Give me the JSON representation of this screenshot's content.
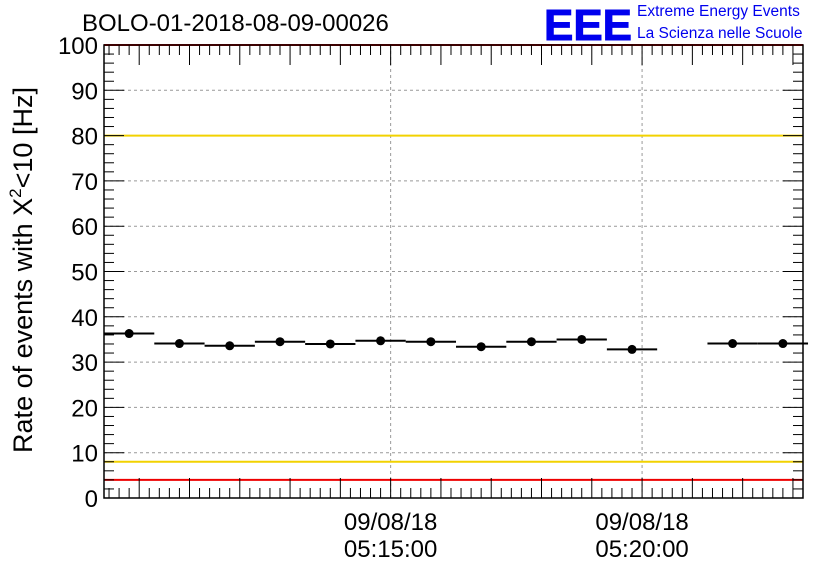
{
  "chart_data": {
    "type": "scatter",
    "title": "BOLO-01-2018-08-09-00026",
    "ylabel_main": "Rate of events with X",
    "ylabel_sup": "2",
    "ylabel_rest": "<10 [Hz]",
    "xlabel": "",
    "ylim": [
      0,
      100
    ],
    "y_ticks": [
      "0",
      "10",
      "20",
      "30",
      "40",
      "50",
      "60",
      "70",
      "80",
      "90",
      "100"
    ],
    "x_unit": "minutes after 09/08/18 05:10:00",
    "xlim": [
      -0.7,
      13.2
    ],
    "x_tick_labels": [
      {
        "x": 5,
        "date": "09/08/18",
        "time": "05:15:00"
      },
      {
        "x": 10,
        "date": "09/08/18",
        "time": "05:20:00"
      }
    ],
    "bin_width": 1,
    "points": [
      {
        "x": -0.2,
        "y": 36.3
      },
      {
        "x": 0.8,
        "y": 34.1
      },
      {
        "x": 1.8,
        "y": 33.6
      },
      {
        "x": 2.8,
        "y": 34.5
      },
      {
        "x": 3.8,
        "y": 34.0
      },
      {
        "x": 4.8,
        "y": 34.7
      },
      {
        "x": 5.8,
        "y": 34.5
      },
      {
        "x": 6.8,
        "y": 33.4
      },
      {
        "x": 7.8,
        "y": 34.5
      },
      {
        "x": 8.8,
        "y": 35.0
      },
      {
        "x": 9.8,
        "y": 32.8
      },
      {
        "x": 11.8,
        "y": 34.1
      },
      {
        "x": 12.8,
        "y": 34.1
      }
    ],
    "reference_lines": [
      {
        "y": 80,
        "color": "#f2d200"
      },
      {
        "y": 8,
        "color": "#f2d200"
      },
      {
        "y": 100,
        "color": "#ee0000"
      },
      {
        "y": 4,
        "color": "#ee0000"
      }
    ],
    "grid": true
  },
  "logo": {
    "mark": "EEE",
    "line1": "Extreme Energy Events",
    "line2": "La Scienza nelle Scuole",
    "color": "#0000ee"
  }
}
